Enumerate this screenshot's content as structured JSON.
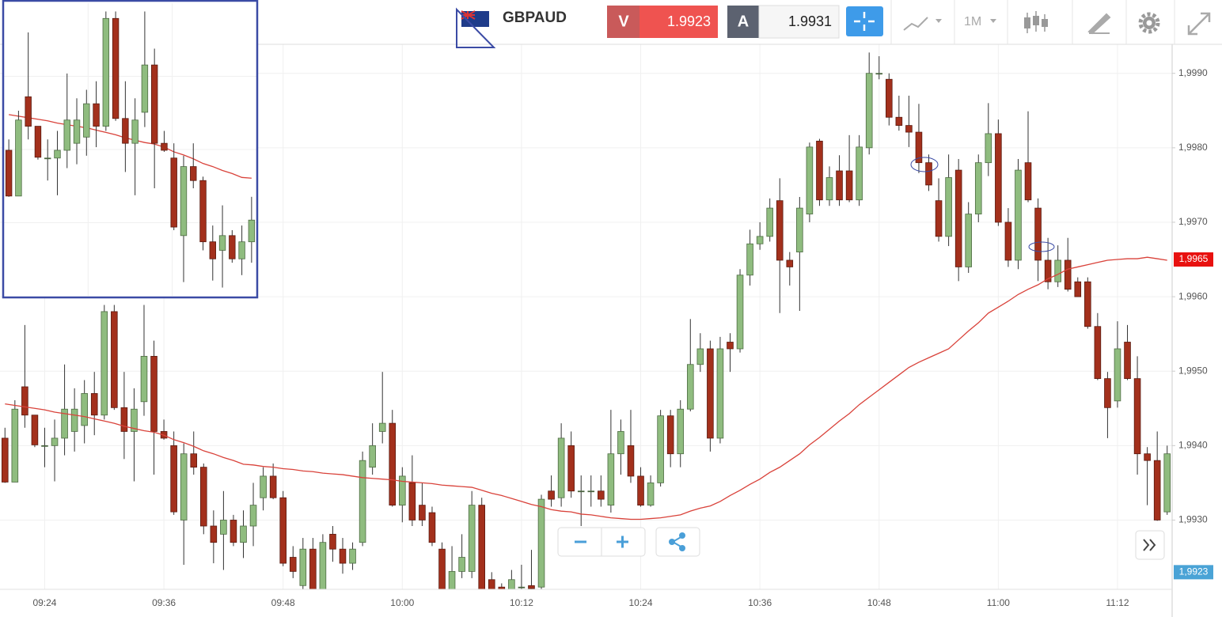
{
  "toolbar": {
    "symbol": "GBPAUD",
    "sell": {
      "label": "V",
      "price": "1.9923"
    },
    "buy": {
      "label": "A",
      "price": "1.9931"
    },
    "timeframe": "1M"
  },
  "chart_data": {
    "type": "candlestick",
    "categories": [
      null,
      null,
      null,
      null,
      "09:24",
      null,
      null,
      null,
      null,
      null,
      null,
      null,
      null,
      null,
      null,
      null,
      "09:36",
      null,
      null,
      null,
      null,
      null,
      null,
      null,
      null,
      null,
      null,
      null,
      "09:48",
      null,
      null,
      null,
      null,
      null,
      null,
      null,
      null,
      null,
      null,
      null,
      "10:00",
      null,
      null,
      null,
      null,
      null,
      null,
      null,
      null,
      null,
      null,
      null,
      "10:12",
      null,
      null,
      null,
      null,
      null,
      null,
      null,
      null,
      null,
      null,
      null,
      "10:24",
      null,
      null,
      null,
      null,
      null,
      null,
      null,
      null,
      null,
      null,
      null,
      "10:36",
      null,
      null,
      null,
      null,
      null,
      null,
      null,
      null,
      null,
      null,
      null,
      "10:48",
      null,
      null,
      null,
      null,
      null,
      null,
      null,
      null,
      null,
      null,
      null,
      "11:00",
      null,
      null,
      null,
      null,
      null,
      null,
      null,
      null,
      null,
      null,
      null,
      "11:12",
      null,
      null,
      null,
      null,
      null
    ],
    "series": [
      {
        "up_color": "#8fbc7f",
        "down_color": "#a3301c",
        "open": [
          1.9941,
          1.99351,
          1.99479,
          1.99441,
          1.994,
          1.994,
          1.9941,
          1.99419,
          1.99427,
          1.9947,
          1.99441,
          1.9958,
          1.99451,
          1.99419,
          1.99459,
          1.9952,
          1.99419,
          1.994,
          1.993,
          1.99389,
          1.99371,
          1.99292,
          1.99281,
          1.993,
          1.9927,
          1.99292,
          1.9933,
          1.99359,
          1.9933,
          1.9925,
          1.99212,
          1.99261,
          1.99207,
          1.99281,
          1.99261,
          1.99242,
          1.9927,
          1.99371,
          1.99419,
          1.9943,
          1.9932,
          1.9935,
          1.9932,
          1.9931,
          1.99261,
          1.99207,
          1.99231,
          1.99231,
          1.9932,
          1.9922,
          1.9921,
          1.99207,
          1.9921,
          1.99212,
          1.9921,
          1.99339,
          1.9933,
          1.994,
          1.99339,
          1.99339,
          1.99339,
          1.9932,
          1.99389,
          1.994,
          1.99359,
          1.9932,
          1.9935,
          1.9944,
          1.99389,
          1.99449,
          1.99509,
          1.9953,
          1.9941,
          1.99539,
          1.9953,
          1.99629,
          1.99671,
          1.99681,
          1.99729,
          1.99649,
          1.9966,
          1.99711,
          1.99809,
          1.9973,
          1.99769,
          1.99769,
          1.9973,
          1.998,
          1.999,
          1.99892,
          1.99841,
          1.9983,
          1.99821,
          1.9978,
          1.99729,
          1.99681,
          1.9977,
          1.9964,
          1.99711,
          1.9978,
          1.99819,
          1.997,
          1.99649,
          1.9978,
          1.99719,
          1.99649,
          1.9962,
          1.99649,
          1.9962,
          1.9962,
          1.9956,
          1.9949,
          1.9946,
          1.99539,
          1.9949,
          1.99389,
          1.9938,
          1.99311
        ],
        "high": [
          1.99424,
          1.99461,
          1.99562,
          1.99441,
          1.99424,
          1.99435,
          1.99509,
          1.99477,
          1.99488,
          1.99499,
          1.99589,
          1.99589,
          1.99499,
          1.99477,
          1.99589,
          1.99541,
          1.99435,
          1.99419,
          1.99403,
          1.99419,
          1.99376,
          1.99313,
          1.99339,
          1.99307,
          1.99313,
          1.9935,
          1.99371,
          1.99376,
          1.99339,
          1.99265,
          1.99276,
          1.99276,
          1.99281,
          1.99292,
          1.99276,
          1.9927,
          1.99392,
          1.9943,
          1.99499,
          1.99448,
          1.99371,
          1.99387,
          1.9935,
          1.99318,
          1.9927,
          1.99265,
          1.99281,
          1.99339,
          1.9933,
          1.9923,
          1.99215,
          1.99233,
          1.9924,
          1.9926,
          1.99334,
          1.9936,
          1.9943,
          1.99419,
          1.9936,
          1.9936,
          1.9936,
          1.99448,
          1.99435,
          1.99448,
          1.99371,
          1.9936,
          1.99448,
          1.99448,
          1.99461,
          1.9957,
          1.99551,
          1.99541,
          1.99546,
          1.99551,
          1.99637,
          1.9969,
          1.997,
          1.99732,
          1.99759,
          1.9966,
          1.99734,
          1.99807,
          1.99812,
          1.99775,
          1.9979,
          1.99817,
          1.99817,
          1.99928,
          1.99923,
          1.999,
          1.9987,
          1.9987,
          1.99859,
          1.99791,
          1.99759,
          1.99791,
          1.99785,
          1.99727,
          1.99791,
          1.9986,
          1.99838,
          1.99719,
          1.99785,
          1.99849,
          1.99732,
          1.99679,
          1.99669,
          1.99679,
          1.99626,
          1.99626,
          1.99578,
          1.99499,
          1.99567,
          1.99562,
          1.9952,
          1.99398,
          1.99419,
          1.994
        ],
        "low": [
          1.9935,
          1.99351,
          1.99424,
          1.99398,
          1.99371,
          1.99352,
          1.99387,
          1.99392,
          1.99403,
          1.99414,
          1.99435,
          1.99448,
          1.99382,
          1.99352,
          1.9944,
          1.99361,
          1.99408,
          1.99307,
          1.9924,
          1.99361,
          1.99281,
          1.99242,
          1.99233,
          1.99265,
          1.99249,
          1.99265,
          1.99313,
          1.99328,
          1.99238,
          1.99222,
          1.99207,
          1.99207,
          1.99207,
          1.99244,
          1.99228,
          1.99233,
          1.99265,
          1.99361,
          1.99403,
          1.99318,
          1.99297,
          1.99292,
          1.99292,
          1.99265,
          1.99207,
          1.99207,
          1.99222,
          1.99222,
          1.99207,
          1.99207,
          1.99207,
          1.99207,
          1.99207,
          1.99207,
          1.99207,
          1.99318,
          1.99318,
          1.9933,
          1.99292,
          1.99318,
          1.99318,
          1.9931,
          1.99361,
          1.9935,
          1.99318,
          1.99318,
          1.99345,
          1.99371,
          1.99371,
          1.99446,
          1.99499,
          1.99392,
          1.99403,
          1.99499,
          1.99525,
          1.99615,
          1.99663,
          1.99674,
          1.99578,
          1.99615,
          1.99581,
          1.997,
          1.99722,
          1.99722,
          1.99722,
          1.99727,
          1.99722,
          1.99791,
          1.99892,
          1.9983,
          1.99823,
          1.99801,
          1.99766,
          1.99742,
          1.99674,
          1.99668,
          1.99621,
          1.99632,
          1.997,
          1.99762,
          1.99695,
          1.9964,
          1.99637,
          1.99727,
          1.99621,
          1.9961,
          1.99613,
          1.99607,
          1.996,
          1.99557,
          1.99488,
          1.9941,
          1.99451,
          1.99488,
          1.99361,
          1.9932,
          1.99299,
          1.99307
        ],
        "close": [
          1.99351,
          1.99449,
          1.99441,
          1.99401,
          1.994,
          1.9941,
          1.99449,
          1.99449,
          1.9947,
          1.99441,
          1.9958,
          1.99451,
          1.99419,
          1.99449,
          1.9952,
          1.99419,
          1.9941,
          1.99311,
          1.99389,
          1.99371,
          1.99292,
          1.9927,
          1.993,
          1.9927,
          1.99292,
          1.9932,
          1.99359,
          1.9933,
          1.99242,
          1.99231,
          1.99261,
          1.99207,
          1.9927,
          1.99261,
          1.99242,
          1.99261,
          1.9938,
          1.994,
          1.9943,
          1.9932,
          1.99359,
          1.993,
          1.993,
          1.9927,
          1.99207,
          1.99231,
          1.9925,
          1.9932,
          1.99207,
          1.99207,
          1.99207,
          1.9922,
          1.9921,
          1.99208,
          1.99328,
          1.99328,
          1.9941,
          1.99339,
          1.99339,
          1.99339,
          1.99328,
          1.99389,
          1.99419,
          1.99359,
          1.9932,
          1.9935,
          1.9944,
          1.99389,
          1.99449,
          1.99509,
          1.9953,
          1.9941,
          1.9953,
          1.9953,
          1.99629,
          1.99671,
          1.99681,
          1.99719,
          1.99649,
          1.9964,
          1.99719,
          1.99801,
          1.9973,
          1.9976,
          1.9973,
          1.9973,
          1.99801,
          1.999,
          1.999,
          1.99841,
          1.9983,
          1.99821,
          1.9978,
          1.9975,
          1.99681,
          1.9976,
          1.9964,
          1.99711,
          1.9978,
          1.99819,
          1.997,
          1.99649,
          1.9977,
          1.9973,
          1.99649,
          1.9962,
          1.99649,
          1.9961,
          1.996,
          1.9956,
          1.9949,
          1.99451,
          1.9953,
          1.9949,
          1.99389,
          1.9938,
          1.993,
          1.99389
        ]
      },
      {
        "color": "#d9423a",
        "values": [
          1.99456,
          1.99454,
          1.99452,
          1.9945,
          1.99448,
          1.99445,
          1.99443,
          1.99441,
          1.99439,
          1.99436,
          1.99433,
          1.9943,
          1.99426,
          1.99423,
          1.9942,
          1.99418,
          1.99414,
          1.99408,
          1.99404,
          1.99399,
          1.99393,
          1.99389,
          1.99384,
          1.9938,
          1.99375,
          1.99374,
          1.99372,
          1.99371,
          1.99369,
          1.99368,
          1.99366,
          1.99365,
          1.99363,
          1.99362,
          1.99361,
          1.99359,
          1.99357,
          1.99356,
          1.99355,
          1.99354,
          1.99352,
          1.99351,
          1.9935,
          1.99349,
          1.99347,
          1.99346,
          1.99345,
          1.99344,
          1.9934,
          1.99336,
          1.99333,
          1.99329,
          1.99325,
          1.99321,
          1.99318,
          1.99314,
          1.99312,
          1.99311,
          1.99308,
          1.99307,
          1.99305,
          1.99303,
          1.99302,
          1.99301,
          1.99301,
          1.99302,
          1.99303,
          1.99305,
          1.99307,
          1.99312,
          1.99316,
          1.99319,
          1.99325,
          1.99333,
          1.9934,
          1.99348,
          1.99355,
          1.99364,
          1.99371,
          1.9938,
          1.99389,
          1.99401,
          1.99411,
          1.99422,
          1.99433,
          1.99443,
          1.99455,
          1.99465,
          1.99475,
          1.99485,
          1.99495,
          1.99505,
          1.99512,
          1.99518,
          1.99524,
          1.9953,
          1.99542,
          1.99554,
          1.99565,
          1.99578,
          1.99586,
          1.99594,
          1.99603,
          1.9961,
          1.99616,
          1.99624,
          1.9963,
          1.99637,
          1.9964,
          1.99643,
          1.99646,
          1.99649,
          1.9965,
          1.99651,
          1.99651,
          1.99653,
          1.99651,
          1.99649
        ]
      }
    ],
    "ylim": [
      1.99207,
      1.99939
    ],
    "yticks": [
      {
        "value": 1.993,
        "label": "1,9930"
      },
      {
        "value": 1.994,
        "label": "1,9940"
      },
      {
        "value": 1.995,
        "label": "1,9950"
      },
      {
        "value": 1.996,
        "label": "1,9960"
      },
      {
        "value": 1.997,
        "label": "1,9970"
      },
      {
        "value": 1.998,
        "label": "1,9980"
      },
      {
        "value": 1.999,
        "label": "1,9990"
      }
    ],
    "grid": true,
    "price_tags": [
      {
        "value": 1.9965,
        "label": "1,9965",
        "color": "#e8110f"
      },
      {
        "value": 1.9923,
        "label": "1,9923",
        "color": "#4aa3d6"
      }
    ]
  }
}
